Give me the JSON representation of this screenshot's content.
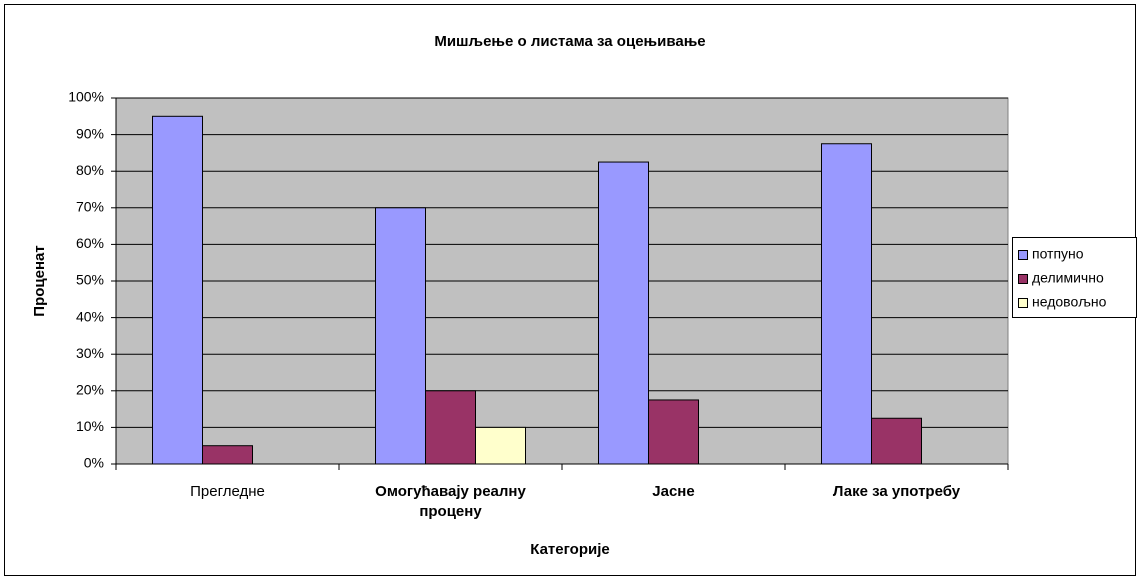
{
  "chart_data": {
    "type": "bar",
    "title": "Мишљење о листама за оцењивање",
    "xlabel": "Категорије",
    "ylabel": "Проценат",
    "categories": [
      "Прегледне",
      "Омогућавају реалну процену",
      "Јасне",
      "Лаке за употребу"
    ],
    "series": [
      {
        "name": "потпуно",
        "color": "#9999ff",
        "values": [
          95,
          70,
          82.5,
          87.5
        ]
      },
      {
        "name": "делимично",
        "color": "#993366",
        "values": [
          5,
          20,
          17.5,
          12.5
        ]
      },
      {
        "name": "недовољно",
        "color": "#ffffcc",
        "values": [
          0,
          10,
          0,
          0
        ]
      }
    ],
    "ylim": [
      0,
      100
    ],
    "yticks": [
      {
        "value": 0,
        "label": "0%"
      },
      {
        "value": 10,
        "label": "10%"
      },
      {
        "value": 20,
        "label": "20%"
      },
      {
        "value": 30,
        "label": "30%"
      },
      {
        "value": 40,
        "label": "40%"
      },
      {
        "value": 50,
        "label": "50%"
      },
      {
        "value": 60,
        "label": "60%"
      },
      {
        "value": 70,
        "label": "70%"
      },
      {
        "value": 80,
        "label": "80%"
      },
      {
        "value": 90,
        "label": "90%"
      },
      {
        "value": 100,
        "label": "100%"
      }
    ],
    "grid": true,
    "legend": "right"
  }
}
